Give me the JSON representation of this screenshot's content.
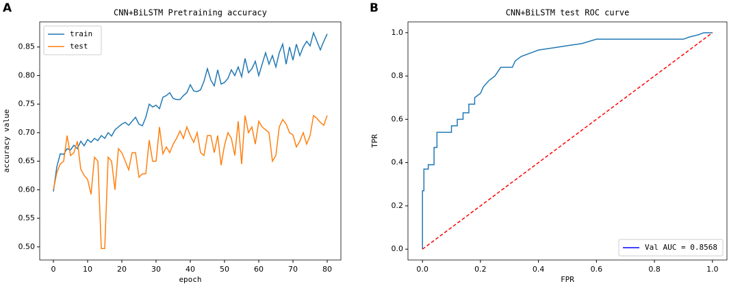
{
  "chart_data": [
    {
      "type": "line",
      "panel_label": "A",
      "title": "CNN+BiLSTM Pretraining accuracy",
      "x_label": "epoch",
      "y_label": "accuracy value",
      "x": [
        0,
        1,
        2,
        3,
        4,
        5,
        6,
        7,
        8,
        9,
        10,
        11,
        12,
        13,
        14,
        15,
        16,
        17,
        18,
        19,
        20,
        21,
        22,
        23,
        24,
        25,
        26,
        27,
        28,
        29,
        30,
        31,
        32,
        33,
        34,
        35,
        36,
        37,
        38,
        39,
        40,
        41,
        42,
        43,
        44,
        45,
        46,
        47,
        48,
        49,
        50,
        51,
        52,
        53,
        54,
        55,
        56,
        57,
        58,
        59,
        60,
        61,
        62,
        63,
        64,
        65,
        66,
        67,
        68,
        69,
        70,
        71,
        72,
        73,
        74,
        75,
        76,
        77,
        78,
        79,
        80
      ],
      "series": [
        {
          "name": "train",
          "color": "#1f77b4",
          "values": [
            0.597,
            0.64,
            0.663,
            0.662,
            0.672,
            0.67,
            0.678,
            0.672,
            0.685,
            0.677,
            0.688,
            0.683,
            0.69,
            0.686,
            0.695,
            0.69,
            0.7,
            0.694,
            0.705,
            0.71,
            0.715,
            0.718,
            0.713,
            0.72,
            0.727,
            0.715,
            0.712,
            0.727,
            0.75,
            0.745,
            0.748,
            0.742,
            0.762,
            0.765,
            0.77,
            0.76,
            0.758,
            0.758,
            0.765,
            0.77,
            0.784,
            0.773,
            0.772,
            0.775,
            0.79,
            0.812,
            0.792,
            0.782,
            0.81,
            0.785,
            0.788,
            0.795,
            0.81,
            0.8,
            0.815,
            0.798,
            0.83,
            0.805,
            0.812,
            0.825,
            0.8,
            0.82,
            0.84,
            0.82,
            0.835,
            0.815,
            0.84,
            0.855,
            0.82,
            0.85,
            0.827,
            0.855,
            0.835,
            0.85,
            0.86,
            0.852,
            0.875,
            0.86,
            0.845,
            0.86,
            0.873
          ]
        },
        {
          "name": "test",
          "color": "#ff7f0e",
          "values": [
            0.6,
            0.63,
            0.645,
            0.65,
            0.695,
            0.66,
            0.665,
            0.685,
            0.636,
            0.625,
            0.618,
            0.592,
            0.657,
            0.65,
            0.497,
            0.497,
            0.657,
            0.65,
            0.6,
            0.672,
            0.665,
            0.65,
            0.635,
            0.665,
            0.665,
            0.622,
            0.628,
            0.628,
            0.687,
            0.65,
            0.65,
            0.71,
            0.663,
            0.675,
            0.665,
            0.68,
            0.69,
            0.703,
            0.69,
            0.71,
            0.695,
            0.683,
            0.7,
            0.665,
            0.66,
            0.695,
            0.695,
            0.665,
            0.695,
            0.643,
            0.678,
            0.7,
            0.69,
            0.66,
            0.72,
            0.645,
            0.73,
            0.7,
            0.71,
            0.68,
            0.72,
            0.71,
            0.705,
            0.7,
            0.65,
            0.66,
            0.71,
            0.723,
            0.715,
            0.7,
            0.696,
            0.675,
            0.685,
            0.7,
            0.68,
            0.695,
            0.73,
            0.725,
            0.718,
            0.713,
            0.73
          ]
        }
      ],
      "xlim": [
        -4,
        84
      ],
      "ylim": [
        0.477,
        0.894
      ],
      "xticks": [
        0,
        10,
        20,
        30,
        40,
        50,
        60,
        70,
        80
      ],
      "yticks": [
        {
          "value": 0.5,
          "label": "0.50"
        },
        0.55,
        {
          "value": 0.6,
          "label": "0.60"
        },
        0.65,
        {
          "value": 0.7,
          "label": "0.70"
        },
        0.75,
        {
          "value": 0.8,
          "label": "0.80"
        },
        0.85
      ],
      "legend": "upper left"
    },
    {
      "type": "line",
      "panel_label": "B",
      "title": "CNN+BiLSTM test ROC curve",
      "x_label": "FPR",
      "y_label": "TPR",
      "series": [
        {
          "name": "Val AUC = 0.8568",
          "color": "#1f77b4",
          "x": [
            0,
            0,
            0.005,
            0.005,
            0.02,
            0.02,
            0.04,
            0.04,
            0.05,
            0.05,
            0.1,
            0.1,
            0.12,
            0.12,
            0.14,
            0.14,
            0.16,
            0.16,
            0.18,
            0.18,
            0.2,
            0.21,
            0.23,
            0.25,
            0.27,
            0.31,
            0.32,
            0.34,
            0.36,
            0.38,
            0.4,
            0.45,
            0.5,
            0.55,
            0.6,
            0.9,
            0.92,
            0.95,
            0.97,
            1.0
          ],
          "values": [
            0,
            0.27,
            0.27,
            0.37,
            0.37,
            0.39,
            0.39,
            0.47,
            0.47,
            0.54,
            0.54,
            0.57,
            0.57,
            0.6,
            0.6,
            0.63,
            0.63,
            0.67,
            0.67,
            0.7,
            0.72,
            0.75,
            0.78,
            0.8,
            0.84,
            0.84,
            0.87,
            0.89,
            0.9,
            0.91,
            0.92,
            0.93,
            0.94,
            0.95,
            0.97,
            0.97,
            0.98,
            0.99,
            1.0,
            1.0
          ]
        },
        {
          "color": "#ff0000",
          "dashed": true,
          "x": [
            0,
            1
          ],
          "values": [
            0,
            1
          ]
        }
      ],
      "xlim": [
        -0.05,
        1.05
      ],
      "ylim": [
        -0.05,
        1.05
      ],
      "xticks": [
        {
          "value": 0,
          "label": "0.0"
        },
        0.2,
        0.4,
        0.6,
        0.8,
        {
          "value": 1,
          "label": "1.0"
        }
      ],
      "yticks": [
        {
          "value": 0,
          "label": "0.0"
        },
        0.2,
        0.4,
        0.6,
        0.8,
        {
          "value": 1,
          "label": "1.0"
        }
      ],
      "legend": "lower right",
      "legend_line_color": "#0000ff"
    }
  ]
}
